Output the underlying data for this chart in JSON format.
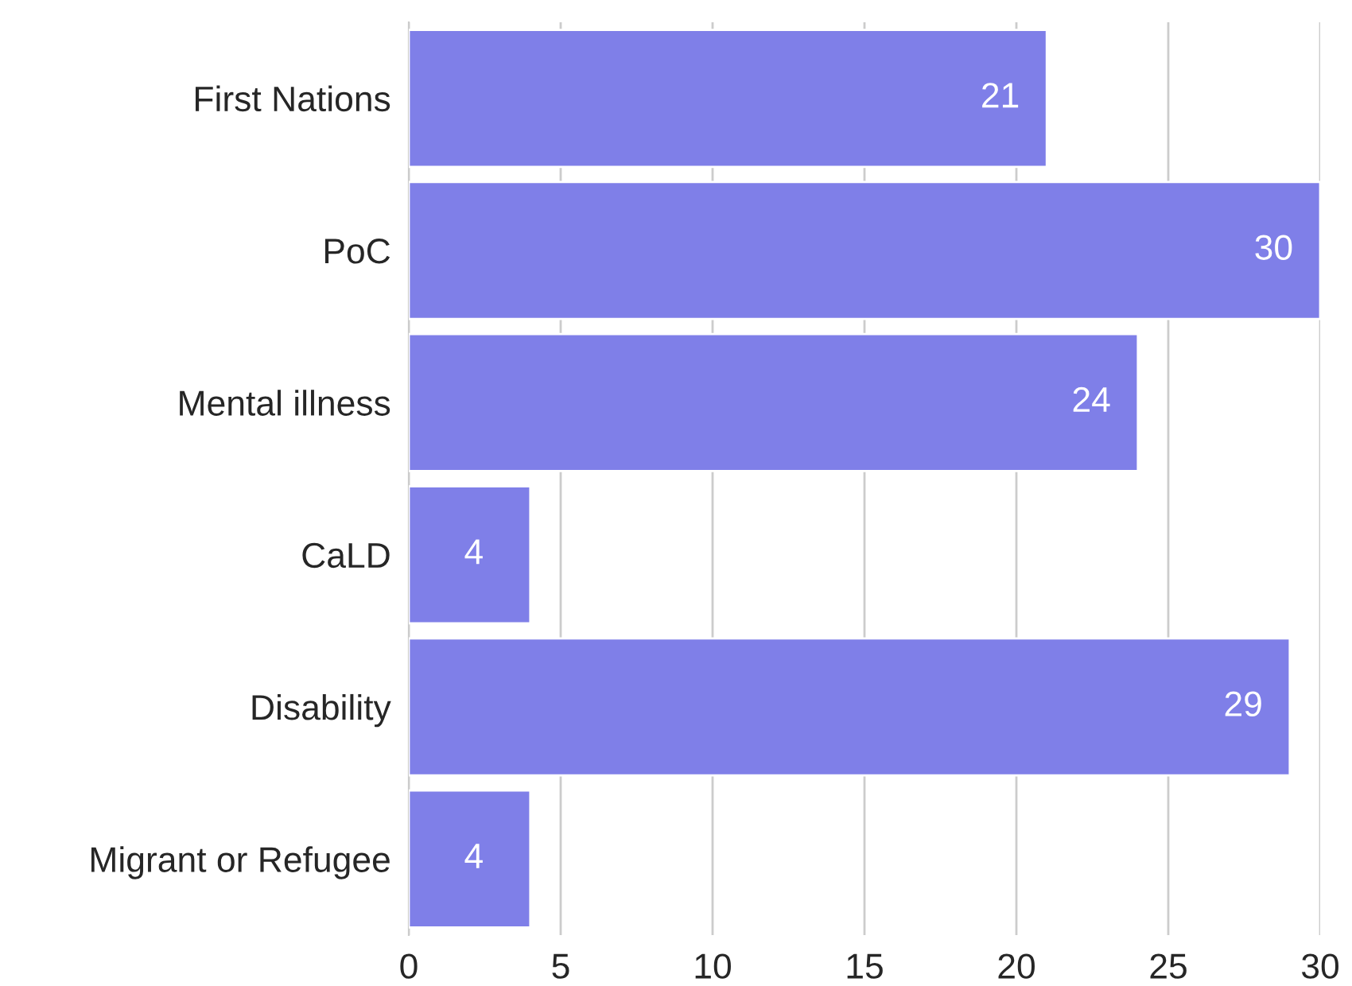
{
  "chart_data": {
    "type": "bar",
    "orientation": "horizontal",
    "categories": [
      "First Nations",
      "PoC",
      "Mental illness",
      "CaLD",
      "Disability",
      "Migrant or Refugee"
    ],
    "values": [
      21,
      30,
      24,
      4,
      29,
      4
    ],
    "color": "#7f7fe8",
    "xlim": [
      0,
      30
    ],
    "xticks": [
      0,
      5,
      10,
      15,
      20,
      25,
      30
    ],
    "grid": "x",
    "data_labels": true
  }
}
